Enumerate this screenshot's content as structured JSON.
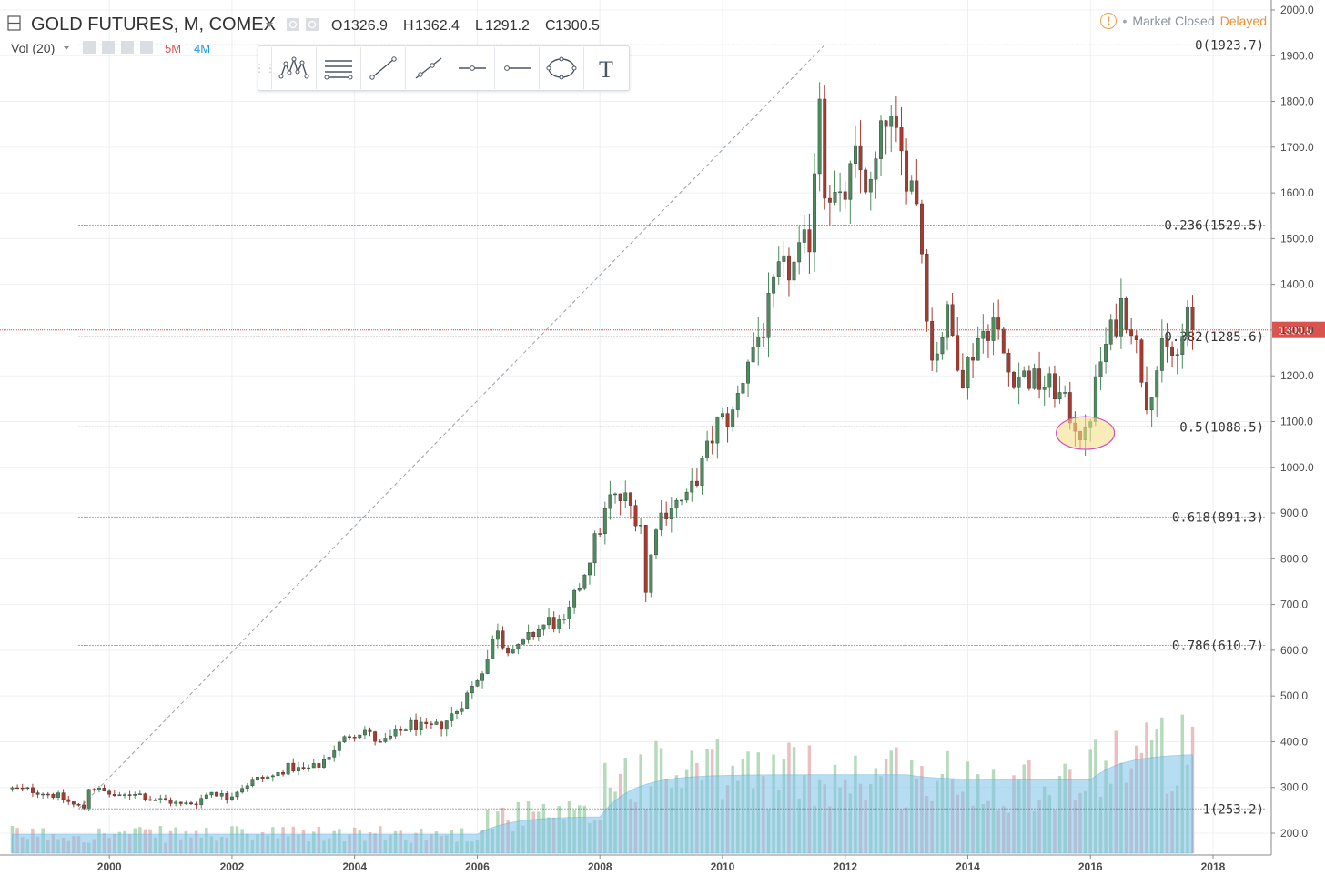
{
  "header": {
    "title": "GOLD FUTURES, M, COMEX",
    "ohlc": [
      {
        "key": "O",
        "value": "1326.9"
      },
      {
        "key": "H",
        "value": "1362.4"
      },
      {
        "key": "L",
        "value": "1291.2"
      },
      {
        "key": "C",
        "value": "1300.5"
      }
    ],
    "volume_indicator": {
      "label": "Vol (20)",
      "value1": "5M",
      "value2": "4M"
    }
  },
  "status": {
    "market": "Market Closed",
    "feed": "Delayed",
    "warning_glyph": "!"
  },
  "toolbar": {
    "tools": [
      "pattern-icon",
      "horizontal-lines-icon",
      "trend-line-icon",
      "ray-icon",
      "horizontal-line-icon",
      "horizontal-ray-icon",
      "ellipse-icon",
      "text-tool-icon"
    ],
    "text_tool_glyph": "T"
  },
  "colors": {
    "up": "#4a8c5c",
    "down": "#a63a2e",
    "vol_up": "#a9d4b0",
    "vol_down": "#e8b4b4",
    "ma_fill": "#7ec3ea",
    "price_line": "#d9534f",
    "grid": "#eef0f3"
  },
  "chart_data": {
    "type": "candlestick",
    "symbol": "GOLD FUTURES, M, COMEX",
    "interval": "monthly",
    "xlim": [
      "1998-06",
      "2018-12"
    ],
    "ylim": [
      150,
      2020
    ],
    "x_ticks": [
      "2000",
      "2002",
      "2004",
      "2006",
      "2008",
      "2010",
      "2012",
      "2014",
      "2016",
      "2018"
    ],
    "y_ticks": [
      "200.0",
      "300.0",
      "400.0",
      "500.0",
      "600.0",
      "700.0",
      "800.0",
      "900.0",
      "1000.0",
      "1100.0",
      "1200.0",
      "1300.0",
      "1400.0",
      "1500.0",
      "1600.0",
      "1700.0",
      "1800.0",
      "1900.0",
      "2000.0"
    ],
    "last_price": "1300.5",
    "fibonacci": {
      "high": 1923.7,
      "low": 253.2,
      "levels": [
        {
          "ratio": "0",
          "price": "1923.7"
        },
        {
          "ratio": "0.236",
          "price": "1529.5"
        },
        {
          "ratio": "0.382",
          "price": "1285.6"
        },
        {
          "ratio": "0.5",
          "price": "1088.5"
        },
        {
          "ratio": "0.618",
          "price": "891.3"
        },
        {
          "ratio": "0.786",
          "price": "610.7"
        },
        {
          "ratio": "1",
          "price": "253.2"
        }
      ]
    },
    "trend_line": {
      "from": {
        "date": "1999-07",
        "price": 253.2
      },
      "to": {
        "date": "2011-09",
        "price": 1923.7
      }
    },
    "highlight": {
      "type": "ellipse",
      "date": "2015-12",
      "price": 1075
    },
    "close_series": [
      [
        "1998-06",
        297
      ],
      [
        "1998-09",
        295
      ],
      [
        "1998-12",
        289
      ],
      [
        "1999-03",
        281
      ],
      [
        "1999-06",
        262
      ],
      [
        "1999-08",
        256
      ],
      [
        "1999-09",
        300
      ],
      [
        "1999-10",
        298
      ],
      [
        "1999-12",
        290
      ],
      [
        "2000-03",
        278
      ],
      [
        "2000-06",
        290
      ],
      [
        "2000-09",
        275
      ],
      [
        "2000-12",
        272
      ],
      [
        "2001-03",
        262
      ],
      [
        "2001-06",
        268
      ],
      [
        "2001-09",
        292
      ],
      [
        "2001-12",
        278
      ],
      [
        "2002-03",
        302
      ],
      [
        "2002-06",
        318
      ],
      [
        "2002-09",
        324
      ],
      [
        "2002-12",
        344
      ],
      [
        "2003-03",
        338
      ],
      [
        "2003-06",
        348
      ],
      [
        "2003-09",
        384
      ],
      [
        "2003-12",
        416
      ],
      [
        "2004-03",
        425
      ],
      [
        "2004-06",
        394
      ],
      [
        "2004-09",
        416
      ],
      [
        "2004-12",
        438
      ],
      [
        "2005-03",
        428
      ],
      [
        "2005-06",
        436
      ],
      [
        "2005-09",
        469
      ],
      [
        "2005-12",
        519
      ],
      [
        "2006-03",
        582
      ],
      [
        "2006-05",
        653
      ],
      [
        "2006-06",
        615
      ],
      [
        "2006-09",
        600
      ],
      [
        "2006-12",
        637
      ],
      [
        "2007-03",
        663
      ],
      [
        "2007-06",
        652
      ],
      [
        "2007-09",
        743
      ],
      [
        "2007-12",
        837
      ],
      [
        "2008-03",
        930
      ],
      [
        "2008-06",
        929
      ],
      [
        "2008-09",
        880
      ],
      [
        "2008-10",
        725
      ],
      [
        "2008-12",
        884
      ],
      [
        "2009-03",
        920
      ],
      [
        "2009-06",
        928
      ],
      [
        "2009-09",
        1005
      ],
      [
        "2009-12",
        1096
      ],
      [
        "2010-03",
        1113
      ],
      [
        "2010-06",
        1242
      ],
      [
        "2010-09",
        1307
      ],
      [
        "2010-12",
        1420
      ],
      [
        "2011-03",
        1439
      ],
      [
        "2011-06",
        1501
      ],
      [
        "2011-08",
        1828
      ],
      [
        "2011-09",
        1625
      ],
      [
        "2011-12",
        1565
      ],
      [
        "2012-03",
        1668
      ],
      [
        "2012-06",
        1604
      ],
      [
        "2012-09",
        1772
      ],
      [
        "2012-12",
        1675
      ],
      [
        "2013-03",
        1596
      ],
      [
        "2013-06",
        1234
      ],
      [
        "2013-09",
        1328
      ],
      [
        "2013-12",
        1202
      ],
      [
        "2014-03",
        1284
      ],
      [
        "2014-06",
        1322
      ],
      [
        "2014-09",
        1210
      ],
      [
        "2014-12",
        1199
      ],
      [
        "2015-03",
        1183
      ],
      [
        "2015-06",
        1172
      ],
      [
        "2015-09",
        1115
      ],
      [
        "2015-12",
        1061
      ],
      [
        "2016-03",
        1234
      ],
      [
        "2016-06",
        1321
      ],
      [
        "2016-07",
        1357
      ],
      [
        "2016-09",
        1316
      ],
      [
        "2016-12",
        1152
      ],
      [
        "2017-03",
        1249
      ],
      [
        "2017-06",
        1242
      ],
      [
        "2017-08",
        1322
      ],
      [
        "2017-09",
        1300.5
      ]
    ]
  }
}
